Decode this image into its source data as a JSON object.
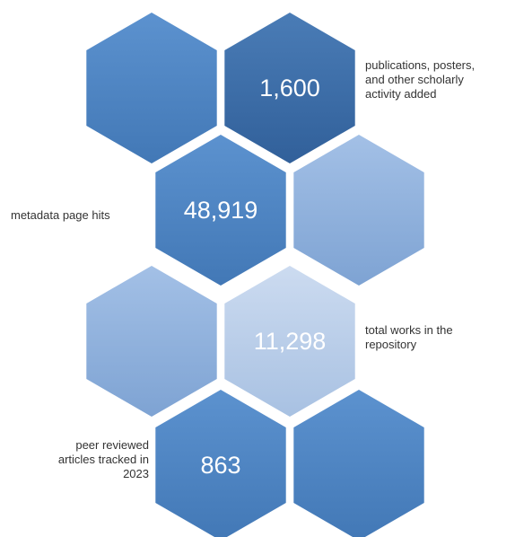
{
  "colors": {
    "dark_blue": "#3e6fa9",
    "mid_blue": "#4f86c3",
    "light_blue": "#8fb1dc",
    "pale_blue": "#b9cde9",
    "label_text": "#333333"
  },
  "hexagons": [
    {
      "id": "hex-row1-left",
      "color": "mid_blue",
      "value": ""
    },
    {
      "id": "hex-row1-right",
      "color": "dark_blue",
      "value": "1,600"
    },
    {
      "id": "hex-row2-left",
      "color": "mid_blue",
      "value": "48,919"
    },
    {
      "id": "hex-row2-right",
      "color": "light_blue",
      "value": ""
    },
    {
      "id": "hex-row3-left",
      "color": "light_blue",
      "value": ""
    },
    {
      "id": "hex-row3-right",
      "color": "pale_blue",
      "value": "11,298"
    },
    {
      "id": "hex-row4-left",
      "color": "mid_blue",
      "value": "863"
    },
    {
      "id": "hex-row4-right",
      "color": "mid_blue",
      "value": ""
    }
  ],
  "labels": {
    "publications": [
      "publications, posters,",
      "and other scholarly",
      "activity added"
    ],
    "page_hits": [
      "metadata page hits"
    ],
    "total_works": [
      "total works in the",
      "repository"
    ],
    "peer_reviewed": [
      "peer reviewed",
      "articles tracked in",
      "2023"
    ]
  }
}
